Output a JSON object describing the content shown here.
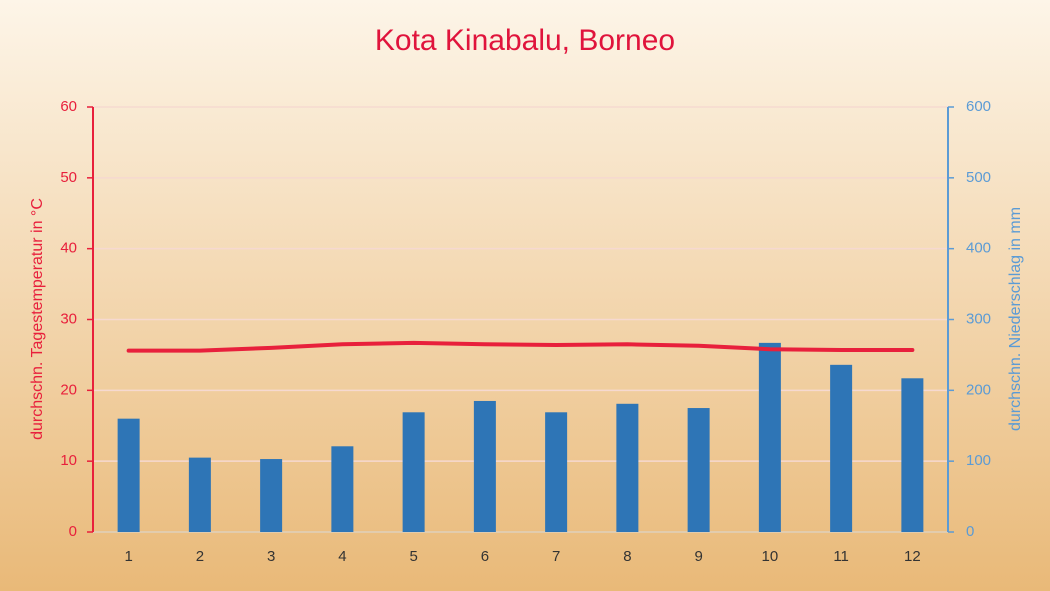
{
  "chart_data": {
    "type": "combo",
    "title": "Kota Kinabalu, Borneo",
    "y_label": "durchschn. Tagestemperatur in °C",
    "y2_label": "durchschn. Niederschlag in mm",
    "categories": [
      "1",
      "2",
      "3",
      "4",
      "5",
      "6",
      "7",
      "8",
      "9",
      "10",
      "11",
      "12"
    ],
    "series": [
      {
        "type": "bar",
        "axis": "y2",
        "color": "#2e75b6",
        "values": [
          160,
          105,
          103,
          121,
          169,
          185,
          169,
          181,
          175,
          267,
          236,
          217
        ]
      },
      {
        "type": "line",
        "axis": "y",
        "color": "#e8203c",
        "values": [
          25.6,
          25.6,
          26.0,
          26.5,
          26.7,
          26.5,
          26.4,
          26.5,
          26.3,
          25.8,
          25.7,
          25.7
        ]
      }
    ],
    "ylim": [
      0,
      60
    ],
    "yticks": [
      0,
      10,
      20,
      30,
      40,
      50,
      60
    ],
    "y_color": "#e8203c",
    "y2lim": [
      0,
      600
    ],
    "y2ticks": [
      0,
      100,
      200,
      300,
      400,
      500,
      600
    ],
    "y2_color": "#5b9bd5",
    "grid": true,
    "title_color": "#e0143c"
  }
}
